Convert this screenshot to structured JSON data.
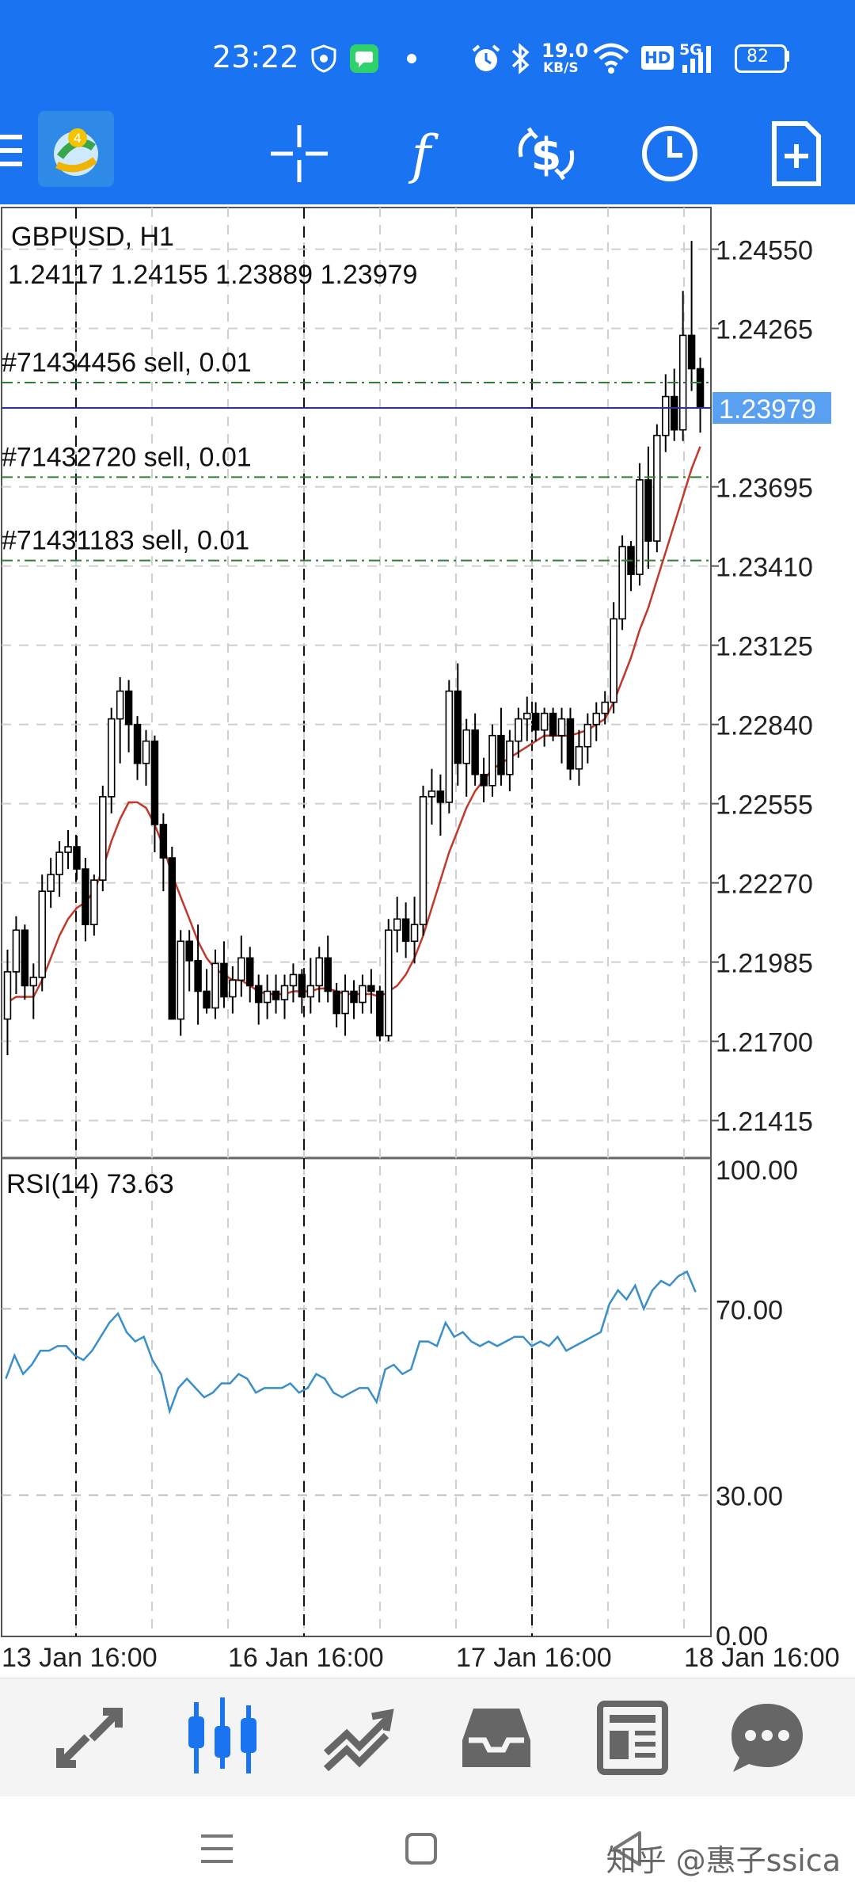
{
  "status_bar": {
    "time": "23:22",
    "net_speed_value": "19.0",
    "net_speed_unit": "KB/S",
    "hd": "HD",
    "signal": "5G",
    "battery": "82",
    "icons": [
      "shield-icon",
      "chat-app-icon",
      "dot-icon",
      "alarm-icon",
      "bluetooth-icon",
      "wifi-icon",
      "signal-icon",
      "battery-icon"
    ]
  },
  "toolbar": {
    "icons": [
      "menu-icon",
      "metatrader-logo",
      "crosshair-icon",
      "function-icon",
      "trade-dollar-icon",
      "clock-icon",
      "new-document-icon"
    ]
  },
  "chart": {
    "symbol": "GBPUSD, H1",
    "ohlc": "1.24117 1.24155 1.23889 1.23979",
    "current_price": "1.23979",
    "orders": [
      {
        "label": "#71434456 sell, 0.01",
        "price": 1.2407
      },
      {
        "label": "#71432720 sell, 0.01",
        "price": 1.2373
      },
      {
        "label": "#71431183 sell, 0.01",
        "price": 1.2343
      }
    ],
    "price_ticks": [
      "1.24550",
      "1.24265",
      "1.23695",
      "1.23410",
      "1.23125",
      "1.22840",
      "1.22555",
      "1.22270",
      "1.21985",
      "1.21700",
      "1.21415"
    ],
    "rsi_label": "RSI(14) 73.63",
    "rsi_ticks": [
      "100.00",
      "70.00",
      "30.00",
      "0.00"
    ],
    "time_labels": [
      "13 Jan 16:00",
      "16 Jan 16:00",
      "17 Jan 16:00",
      "18 Jan 16:00"
    ],
    "colors": {
      "buy_candle": "#ffffff",
      "sell_candle": "#000000",
      "ma_line": "#c0392b",
      "rsi_line": "#3a8fc8",
      "order_line": "#2e7d32",
      "price_line": "#283593",
      "price_tag": "#5aa0f0"
    }
  },
  "chart_data": {
    "type": "candlestick",
    "symbol": "GBPUSD",
    "timeframe": "H1",
    "ylim": [
      1.2128,
      1.247
    ],
    "candles": [
      [
        1.2178,
        1.2203,
        1.2165,
        1.2195
      ],
      [
        1.2195,
        1.2215,
        1.2187,
        1.221
      ],
      [
        1.221,
        1.2212,
        1.2185,
        1.219
      ],
      [
        1.219,
        1.2198,
        1.2178,
        1.2193
      ],
      [
        1.2193,
        1.223,
        1.2188,
        1.2224
      ],
      [
        1.2224,
        1.2236,
        1.2218,
        1.223
      ],
      [
        1.223,
        1.2242,
        1.2222,
        1.2238
      ],
      [
        1.2238,
        1.2246,
        1.2232,
        1.224
      ],
      [
        1.224,
        1.2244,
        1.2228,
        1.2232
      ],
      [
        1.2232,
        1.2236,
        1.2206,
        1.2212
      ],
      [
        1.2212,
        1.223,
        1.2208,
        1.2228
      ],
      [
        1.2228,
        1.2262,
        1.2224,
        1.2258
      ],
      [
        1.2258,
        1.229,
        1.2252,
        1.2286
      ],
      [
        1.2286,
        1.2301,
        1.227,
        1.2296
      ],
      [
        1.2296,
        1.23,
        1.2274,
        1.2284
      ],
      [
        1.2284,
        1.2287,
        1.2264,
        1.227
      ],
      [
        1.227,
        1.2282,
        1.2262,
        1.2278
      ],
      [
        1.2278,
        1.228,
        1.2238,
        1.2248
      ],
      [
        1.2248,
        1.2252,
        1.2224,
        1.2236
      ],
      [
        1.2236,
        1.224,
        1.2178,
        1.2178
      ],
      [
        1.2178,
        1.221,
        1.2172,
        1.2206
      ],
      [
        1.2206,
        1.221,
        1.2188,
        1.2199
      ],
      [
        1.2199,
        1.2212,
        1.2176,
        1.2188
      ],
      [
        1.2188,
        1.2196,
        1.218,
        1.2182
      ],
      [
        1.2182,
        1.2203,
        1.2178,
        1.2198
      ],
      [
        1.2198,
        1.2206,
        1.2182,
        1.2186
      ],
      [
        1.2186,
        1.2197,
        1.218,
        1.2192
      ],
      [
        1.2192,
        1.2208,
        1.2186,
        1.22
      ],
      [
        1.22,
        1.2204,
        1.2184,
        1.219
      ],
      [
        1.219,
        1.2194,
        1.2176,
        1.2184
      ],
      [
        1.2184,
        1.2194,
        1.2178,
        1.2188
      ],
      [
        1.2188,
        1.2194,
        1.218,
        1.2185
      ],
      [
        1.2185,
        1.2194,
        1.2178,
        1.219
      ],
      [
        1.219,
        1.2198,
        1.2184,
        1.2194
      ],
      [
        1.2194,
        1.2196,
        1.218,
        1.2186
      ],
      [
        1.2186,
        1.22,
        1.218,
        1.219
      ],
      [
        1.219,
        1.2204,
        1.2184,
        1.22
      ],
      [
        1.22,
        1.2208,
        1.2184,
        1.2188
      ],
      [
        1.2188,
        1.2191,
        1.2175,
        1.218
      ],
      [
        1.218,
        1.2194,
        1.2172,
        1.2188
      ],
      [
        1.2188,
        1.2192,
        1.2178,
        1.2184
      ],
      [
        1.2184,
        1.2194,
        1.218,
        1.219
      ],
      [
        1.219,
        1.2196,
        1.218,
        1.2188
      ],
      [
        1.2188,
        1.219,
        1.217,
        1.2172
      ],
      [
        1.2172,
        1.2214,
        1.217,
        1.221
      ],
      [
        1.221,
        1.2222,
        1.2202,
        1.2214
      ],
      [
        1.2214,
        1.222,
        1.22,
        1.2206
      ],
      [
        1.2206,
        1.2222,
        1.2198,
        1.2212
      ],
      [
        1.2212,
        1.2262,
        1.2208,
        1.2258
      ],
      [
        1.2258,
        1.2268,
        1.2248,
        1.226
      ],
      [
        1.226,
        1.2266,
        1.2244,
        1.2256
      ],
      [
        1.2256,
        1.23,
        1.2252,
        1.2296
      ],
      [
        1.2296,
        1.2306,
        1.2262,
        1.227
      ],
      [
        1.227,
        1.2286,
        1.2258,
        1.2282
      ],
      [
        1.2282,
        1.2288,
        1.2262,
        1.2266
      ],
      [
        1.2266,
        1.2272,
        1.2256,
        1.2262
      ],
      [
        1.2262,
        1.2284,
        1.2258,
        1.228
      ],
      [
        1.228,
        1.229,
        1.2262,
        1.2266
      ],
      [
        1.2266,
        1.2282,
        1.226,
        1.2278
      ],
      [
        1.2278,
        1.229,
        1.2272,
        1.2286
      ],
      [
        1.2286,
        1.2294,
        1.2278,
        1.2288
      ],
      [
        1.2288,
        1.2292,
        1.2278,
        1.2282
      ],
      [
        1.2282,
        1.229,
        1.2276,
        1.2288
      ],
      [
        1.2288,
        1.229,
        1.2278,
        1.228
      ],
      [
        1.228,
        1.229,
        1.227,
        1.2286
      ],
      [
        1.2286,
        1.229,
        1.2264,
        1.2268
      ],
      [
        1.2268,
        1.2282,
        1.2262,
        1.2276
      ],
      [
        1.2276,
        1.2288,
        1.227,
        1.2284
      ],
      [
        1.2284,
        1.2292,
        1.2278,
        1.2288
      ],
      [
        1.2288,
        1.2296,
        1.2284,
        1.2292
      ],
      [
        1.2292,
        1.2328,
        1.2288,
        1.2322
      ],
      [
        1.2322,
        1.2352,
        1.2318,
        1.2348
      ],
      [
        1.2348,
        1.235,
        1.2332,
        1.2338
      ],
      [
        1.2338,
        1.2378,
        1.2334,
        1.2372
      ],
      [
        1.2372,
        1.2384,
        1.234,
        1.235
      ],
      [
        1.235,
        1.2392,
        1.2346,
        1.2388
      ],
      [
        1.2388,
        1.241,
        1.2382,
        1.2402
      ],
      [
        1.2402,
        1.2412,
        1.2386,
        1.239
      ],
      [
        1.239,
        1.244,
        1.2386,
        1.2424
      ],
      [
        1.2424,
        1.2458,
        1.2404,
        1.2412
      ],
      [
        1.2412,
        1.2416,
        1.2389,
        1.2398
      ]
    ],
    "ma": [
      1.2184,
      1.2186,
      1.2186,
      1.2186,
      1.2192,
      1.22,
      1.2208,
      1.2214,
      1.2218,
      1.222,
      1.2224,
      1.2232,
      1.2242,
      1.225,
      1.2256,
      1.2256,
      1.2254,
      1.2248,
      1.224,
      1.223,
      1.2222,
      1.2214,
      1.2206,
      1.22,
      1.2196,
      1.2194,
      1.2192,
      1.2192,
      1.219,
      1.2188,
      1.2187,
      1.2187,
      1.2187,
      1.2188,
      1.2188,
      1.2188,
      1.2189,
      1.2189,
      1.2188,
      1.2187,
      1.2187,
      1.2187,
      1.2187,
      1.2186,
      1.2188,
      1.219,
      1.2194,
      1.22,
      1.2208,
      1.2218,
      1.2228,
      1.2238,
      1.2246,
      1.2254,
      1.226,
      1.2264,
      1.2268,
      1.227,
      1.2272,
      1.2274,
      1.2276,
      1.2278,
      1.228,
      1.228,
      1.228,
      1.228,
      1.2281,
      1.2282,
      1.2284,
      1.2286,
      1.2292,
      1.23,
      1.2308,
      1.2318,
      1.2326,
      1.2336,
      1.2346,
      1.2356,
      1.2366,
      1.2376,
      1.2384
    ],
    "rsi": [
      55,
      60,
      56,
      58,
      61,
      61,
      62,
      62,
      60,
      59,
      61,
      64,
      67,
      69,
      65,
      63,
      64,
      59,
      56,
      48,
      53,
      55,
      53,
      51,
      52,
      54,
      54,
      56,
      55,
      52,
      53,
      53,
      53,
      54,
      52,
      53,
      56,
      55,
      52,
      51,
      52,
      53,
      53,
      50,
      57,
      58,
      56,
      57,
      63,
      63,
      62,
      67,
      64,
      65,
      63,
      62,
      63,
      62,
      63,
      64,
      64,
      62,
      63,
      62,
      64,
      61,
      62,
      63,
      64,
      65,
      71,
      74,
      72,
      75,
      70,
      74,
      76,
      75,
      77,
      78,
      73.63
    ],
    "rsi_ylim": [
      0,
      100
    ]
  },
  "bottom_nav": {
    "items": [
      "quotes-icon",
      "chart-icon",
      "trade-icon",
      "history-icon",
      "news-icon",
      "chat-icon"
    ],
    "active": 1
  },
  "system_nav": {
    "buttons": [
      "recent-apps-icon",
      "home-icon",
      "back-icon"
    ],
    "watermark": "知乎 @惠子ssica"
  }
}
